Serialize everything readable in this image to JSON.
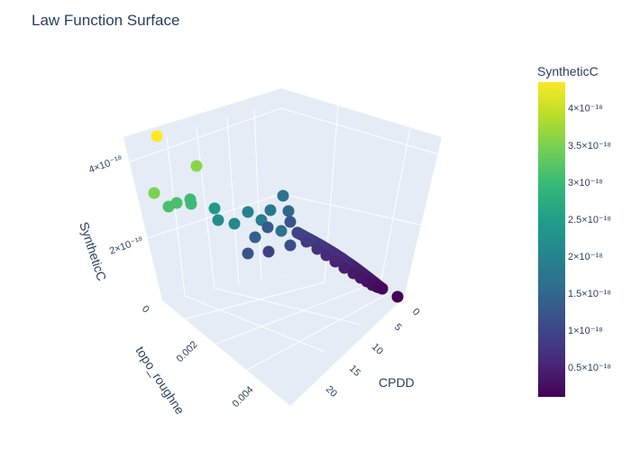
{
  "chart_data": {
    "type": "scatter3d",
    "title": "Law Function Surface",
    "axes": {
      "x": {
        "label": "CPDD",
        "ticks": [
          "0",
          "5",
          "10",
          "15",
          "20"
        ]
      },
      "y": {
        "label": "topo_roughne",
        "ticks": [
          "0",
          "0.002",
          "0.004"
        ]
      },
      "z": {
        "label": "SyntheticC",
        "ticks": [
          "2×10⁻¹⁸",
          "4×10⁻¹⁸"
        ]
      }
    },
    "colorbar": {
      "title": "SyntheticC",
      "colorscale": "Viridis",
      "range": [
        1e-19,
        4.35e-18
      ],
      "ticks": [
        "4×10⁻¹⁸",
        "3.5×10⁻¹⁸",
        "3×10⁻¹⁸",
        "2.5×10⁻¹⁸",
        "2×10⁻¹⁸",
        "1.5×10⁻¹⁸",
        "1×10⁻¹⁸",
        "0.5×10⁻¹⁸"
      ],
      "tick_values": [
        4.0,
        3.5,
        3.0,
        2.5,
        2.0,
        1.5,
        1.0,
        0.5
      ]
    },
    "points_note": "approximate: z in units of 1e-18",
    "points": [
      {
        "cpdd": 1.0,
        "topo": 0.0045,
        "z": 4.35
      },
      {
        "cpdd": 1.5,
        "topo": 0.0035,
        "z": 3.6
      },
      {
        "cpdd": 1.0,
        "topo": 0.0048,
        "z": 3.5
      },
      {
        "cpdd": 1.2,
        "topo": 0.0042,
        "z": 3.1
      },
      {
        "cpdd": 1.3,
        "topo": 0.004,
        "z": 3.1
      },
      {
        "cpdd": 1.6,
        "topo": 0.0033,
        "z": 3.0
      },
      {
        "cpdd": 1.7,
        "topo": 0.0032,
        "z": 3.0
      },
      {
        "cpdd": 2.0,
        "topo": 0.0028,
        "z": 2.4
      },
      {
        "cpdd": 2.2,
        "topo": 0.0026,
        "z": 2.2
      },
      {
        "cpdd": 2.5,
        "topo": 0.0024,
        "z": 2.1
      },
      {
        "cpdd": 2.8,
        "topo": 0.0022,
        "z": 2.0
      },
      {
        "cpdd": 3.0,
        "topo": 0.002,
        "z": 1.9
      },
      {
        "cpdd": 3.3,
        "topo": 0.0018,
        "z": 1.8
      },
      {
        "cpdd": 3.5,
        "topo": 0.0017,
        "z": 1.7
      },
      {
        "cpdd": 2.5,
        "topo": 0.0026,
        "z": 1.4
      },
      {
        "cpdd": 3.0,
        "topo": 0.0022,
        "z": 1.3
      },
      {
        "cpdd": 2.4,
        "topo": 0.003,
        "z": 1.2
      },
      {
        "cpdd": 3.6,
        "topo": 0.0016,
        "z": 1.1
      },
      {
        "cpdd": 3.0,
        "topo": 0.0028,
        "z": 0.9
      },
      {
        "cpdd": 0.5,
        "topo": 0.0002,
        "z": 1.7
      },
      {
        "cpdd": 1.0,
        "topo": 0.0003,
        "z": 1.5
      },
      {
        "cpdd": 2.0,
        "topo": 0.0004,
        "z": 1.2
      },
      {
        "cpdd": 3.0,
        "topo": 0.0004,
        "z": 1.0
      },
      {
        "cpdd": 4.0,
        "topo": 0.0004,
        "z": 0.85
      },
      {
        "cpdd": 5.0,
        "topo": 0.0004,
        "z": 0.72
      },
      {
        "cpdd": 6.0,
        "topo": 0.0004,
        "z": 0.62
      },
      {
        "cpdd": 7.0,
        "topo": 0.0004,
        "z": 0.54
      },
      {
        "cpdd": 8.0,
        "topo": 0.0004,
        "z": 0.47
      },
      {
        "cpdd": 9.0,
        "topo": 0.0004,
        "z": 0.41
      },
      {
        "cpdd": 10.0,
        "topo": 0.0004,
        "z": 0.36
      },
      {
        "cpdd": 11.0,
        "topo": 0.0004,
        "z": 0.32
      },
      {
        "cpdd": 12.0,
        "topo": 0.0004,
        "z": 0.28
      },
      {
        "cpdd": 13.0,
        "topo": 0.0004,
        "z": 0.25
      },
      {
        "cpdd": 14.0,
        "topo": 0.0004,
        "z": 0.22
      },
      {
        "cpdd": 15.0,
        "topo": 0.0004,
        "z": 0.2
      },
      {
        "cpdd": 15.5,
        "topo": 0.0001,
        "z": 0.12
      }
    ]
  }
}
